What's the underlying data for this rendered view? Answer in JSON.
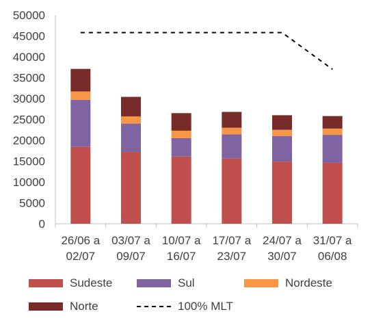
{
  "chart_data": {
    "type": "bar",
    "categories": [
      [
        "26/06 a",
        "02/07"
      ],
      [
        "03/07 a",
        "09/07"
      ],
      [
        "10/07 a",
        "16/07"
      ],
      [
        "17/07 a",
        "23/07"
      ],
      [
        "24/07 a",
        "30/07"
      ],
      [
        "31/07 a",
        "06/08"
      ]
    ],
    "stacked": true,
    "series": [
      {
        "name": "Sudeste",
        "color": "#C0504D",
        "values": [
          18400,
          17200,
          16100,
          15600,
          14900,
          14600
        ]
      },
      {
        "name": "Sul",
        "color": "#8064A2",
        "values": [
          11300,
          6800,
          4400,
          5800,
          6100,
          6700
        ]
      },
      {
        "name": "Nordeste",
        "color": "#F79646",
        "values": [
          2000,
          1700,
          1800,
          1600,
          1500,
          1500
        ]
      },
      {
        "name": "Norte",
        "color": "#772C2A",
        "values": [
          5400,
          4700,
          4200,
          3800,
          3500,
          3000
        ]
      }
    ],
    "line_series": {
      "name": "100% MLT",
      "style": "dashed",
      "color": "#000000",
      "values": [
        45800,
        45800,
        45800,
        45800,
        45800,
        37000
      ]
    },
    "ylim": [
      0,
      50000
    ],
    "yticks": [
      "0",
      "5000",
      "10000",
      "15000",
      "20000",
      "25000",
      "30000",
      "35000",
      "40000",
      "45000",
      "50000"
    ],
    "title": "",
    "xlabel": "",
    "ylabel": "",
    "grid": false,
    "legend_position": "bottom"
  }
}
